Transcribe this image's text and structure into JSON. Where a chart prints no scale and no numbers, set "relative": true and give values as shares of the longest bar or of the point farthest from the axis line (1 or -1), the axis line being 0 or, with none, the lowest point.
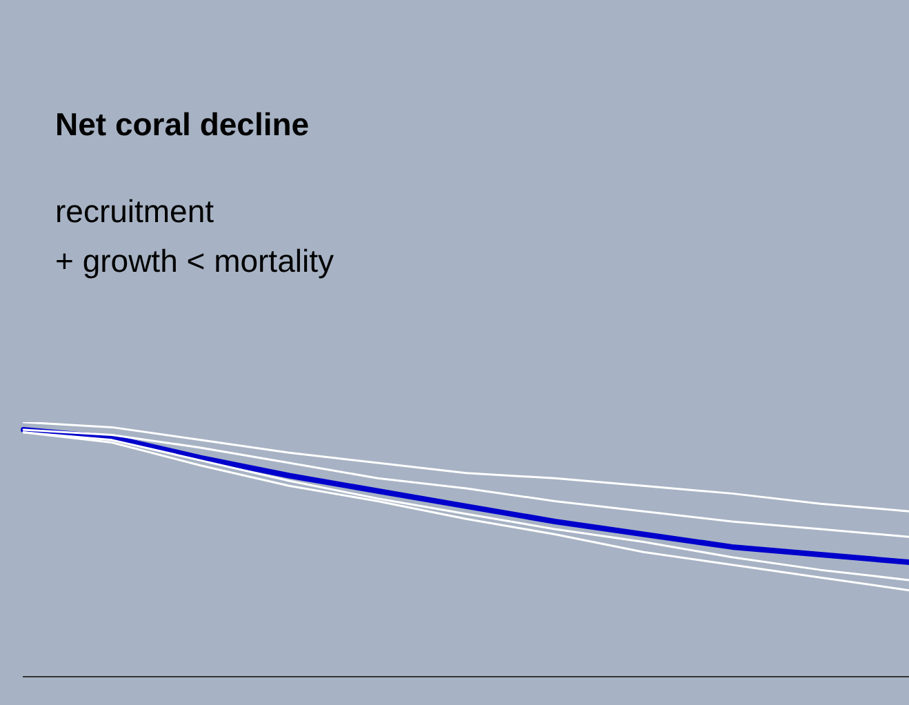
{
  "chart_data": {
    "type": "line",
    "title": "Net coral decline",
    "annotations": [
      "recruitment\n+ growth < mortality"
    ],
    "relative": true,
    "categories": [
      null,
      null,
      null,
      null,
      null,
      null,
      null,
      null,
      null,
      null,
      null
    ],
    "legend": false,
    "grid": false,
    "marker": "none",
    "line_style": "solid",
    "series": [
      {
        "color": "#ffffff",
        "values": [
          1,
          0.98,
          0.93,
          0.88,
          0.84,
          0.8,
          0.78,
          0.75,
          0.72,
          0.68,
          0.65
        ]
      },
      {
        "color": "#ffffff",
        "values": [
          0.97,
          0.95,
          0.9,
          0.84,
          0.78,
          0.74,
          0.69,
          0.65,
          0.61,
          0.58,
          0.55
        ]
      },
      {
        "color": "#ffffff",
        "values": [
          0.96,
          0.93,
          0.85,
          0.77,
          0.7,
          0.64,
          0.58,
          0.53,
          0.47,
          0.42,
          0.38
        ]
      },
      {
        "color": "#ffffff",
        "values": [
          0.96,
          0.92,
          0.83,
          0.75,
          0.69,
          0.62,
          0.56,
          0.49,
          0.44,
          0.39,
          0.34
        ]
      },
      {
        "color": "#0000cc",
        "values": [
          0.97,
          0.94,
          0.86,
          0.79,
          0.73,
          0.67,
          0.61,
          0.56,
          0.51,
          0.48,
          0.45
        ]
      }
    ]
  }
}
